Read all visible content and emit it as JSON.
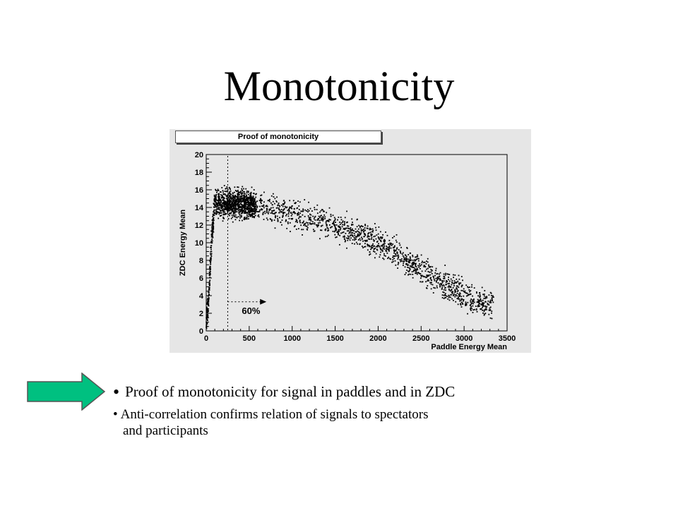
{
  "slide": {
    "title": "Monotonicity",
    "bullets": [
      "Proof of monotonicity for  signal in paddles and in ZDC",
      "Anti-correlation confirms relation of signals  to spectators",
      "and participants"
    ]
  },
  "arrow_color": "#00c080",
  "chart_data": {
    "type": "scatter",
    "title": "Proof of monotonicity",
    "xlabel": "Paddle Energy Mean",
    "ylabel": "ZDC Energy Mean",
    "xlim": [
      0,
      3500
    ],
    "ylim": [
      0,
      20
    ],
    "x_ticks": [
      "0",
      "500",
      "1000",
      "1500",
      "2000",
      "2500",
      "3000",
      "3500"
    ],
    "y_ticks": [
      "0",
      "2",
      "4",
      "6",
      "8",
      "10",
      "12",
      "14",
      "16",
      "18",
      "20"
    ],
    "grid": false,
    "point_color": "#000000",
    "annotation": {
      "text": "60%",
      "cut_x": 250,
      "arrow_y": [
        3.3,
        3.3
      ],
      "arrow_x": [
        250,
        700
      ]
    },
    "distribution": {
      "description_points": [
        {
          "x": 0,
          "y": 0.5
        },
        {
          "x": 30,
          "y": 4
        },
        {
          "x": 60,
          "y": 10
        },
        {
          "x": 100,
          "y": 14.5
        },
        {
          "x": 300,
          "y": 14.5
        },
        {
          "x": 600,
          "y": 14.2
        },
        {
          "x": 1000,
          "y": 13.3
        },
        {
          "x": 1500,
          "y": 12
        },
        {
          "x": 2000,
          "y": 10
        },
        {
          "x": 2500,
          "y": 7
        },
        {
          "x": 2800,
          "y": 5
        },
        {
          "x": 3100,
          "y": 3.5
        },
        {
          "x": 3300,
          "y": 3
        }
      ]
    }
  }
}
